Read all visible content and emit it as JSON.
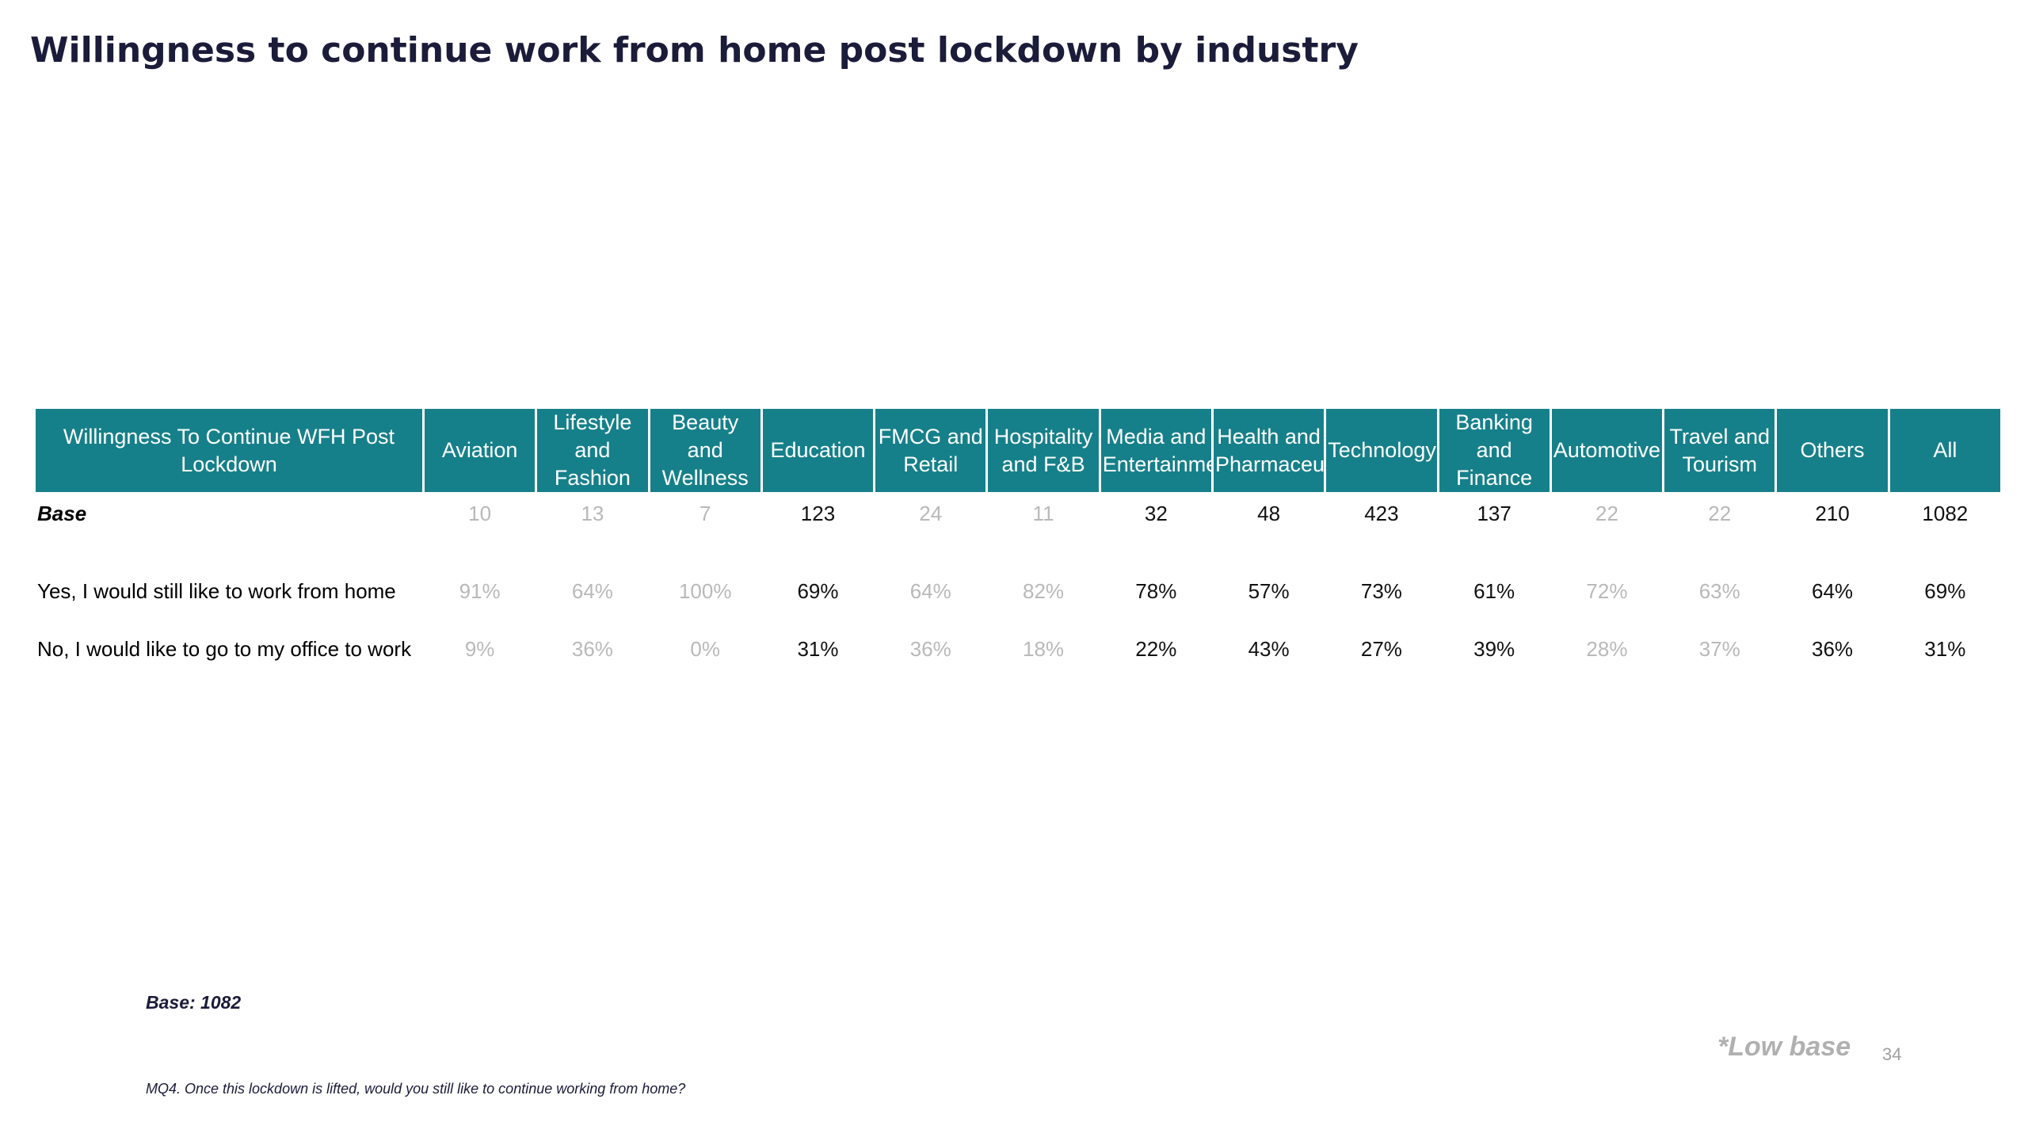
{
  "title": "Willingness to continue work from home post lockdown by industry",
  "table": {
    "row_header": "Willingness To Continue WFH Post Lockdown",
    "columns": [
      {
        "label": "Aviation",
        "low_base": true
      },
      {
        "label": "Lifestyle and Fashion",
        "low_base": true
      },
      {
        "label": "Beauty and Wellness",
        "low_base": true
      },
      {
        "label": "Education",
        "low_base": false
      },
      {
        "label": "FMCG and Retail",
        "low_base": true
      },
      {
        "label": "Hospitality and F&B",
        "low_base": true
      },
      {
        "label": "Media and Entertainment",
        "low_base": false
      },
      {
        "label": "Health and Pharmaceuticals",
        "low_base": false
      },
      {
        "label": "Technology",
        "low_base": false
      },
      {
        "label": "Banking and Finance",
        "low_base": false
      },
      {
        "label": "Automotive",
        "low_base": true
      },
      {
        "label": "Travel and Tourism",
        "low_base": true
      },
      {
        "label": "Others",
        "low_base": false
      },
      {
        "label": "All",
        "low_base": false
      }
    ],
    "rows": [
      {
        "label": "Base",
        "values": [
          "10",
          "13",
          "7",
          "123",
          "24",
          "11",
          "32",
          "48",
          "423",
          "137",
          "22",
          "22",
          "210",
          "1082"
        ]
      },
      {
        "label": "Yes, I would still like to work from home",
        "values": [
          "91%",
          "64%",
          "100%",
          "69%",
          "64%",
          "82%",
          "78%",
          "57%",
          "73%",
          "61%",
          "72%",
          "63%",
          "64%",
          "69%"
        ]
      },
      {
        "label": "No, I would like to go to my office to work",
        "values": [
          "9%",
          "36%",
          "0%",
          "31%",
          "36%",
          "18%",
          "22%",
          "43%",
          "27%",
          "39%",
          "28%",
          "37%",
          "36%",
          "31%"
        ]
      }
    ]
  },
  "footer": {
    "base_note": "Base: 1082",
    "low_base_note": "*Low base",
    "page_number": "34",
    "question": "MQ4. Once this lockdown is lifted, would you still like to continue working from home?"
  },
  "colors": {
    "header_fill": "#16808a",
    "title_text": "#1b1b3a",
    "low_base_text": "#b9b9b9"
  }
}
